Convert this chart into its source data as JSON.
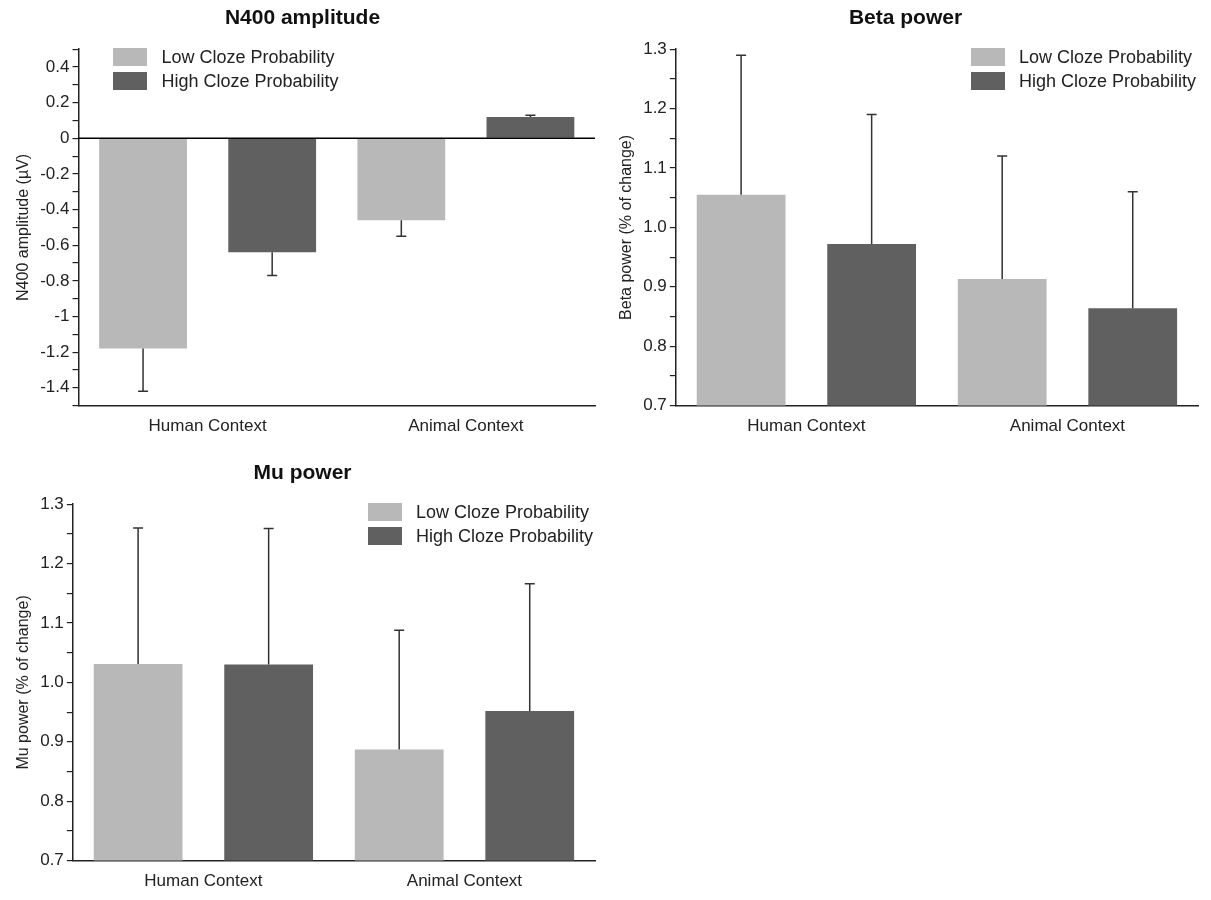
{
  "chart_data": [
    {
      "type": "bar",
      "title": "N400 amplitude",
      "ylabel": "N400 amplitude (µV)",
      "categories": [
        "Human Context",
        "Animal Context"
      ],
      "legend": "top left",
      "series": [
        {
          "name": "Low Cloze Probability",
          "color": "#b8b8b8",
          "values": [
            -1.18,
            -0.46
          ],
          "errors": [
            [
              -1.42,
              -1.18
            ],
            [
              -0.55,
              -0.46
            ]
          ]
        },
        {
          "name": "High Cloze Probability",
          "color": "#606060",
          "values": [
            -0.64,
            0.12
          ],
          "errors": [
            [
              -0.77,
              -0.64
            ],
            [
              0.12,
              0.13
            ]
          ]
        }
      ],
      "ylim": [
        -1.5,
        0.5
      ],
      "yticks": [
        {
          "value": -1.5,
          "label": null
        },
        -1.4,
        {
          "value": -1.3,
          "label": null
        },
        -1.2,
        {
          "value": -1.1,
          "label": null
        },
        -1,
        {
          "value": -0.9,
          "label": null
        },
        -0.8,
        {
          "value": -0.7,
          "label": null
        },
        -0.6,
        {
          "value": -0.5,
          "label": null
        },
        -0.4,
        {
          "value": -0.3,
          "label": null
        },
        -0.2,
        {
          "value": -0.1,
          "label": null
        },
        0,
        {
          "value": 0.1,
          "label": null
        },
        0.2,
        {
          "value": 0.3,
          "label": null
        },
        0.4,
        {
          "value": 0.5,
          "label": null
        }
      ],
      "ref_lines": [
        {
          "axis": "y",
          "value": 0,
          "color": "#000000"
        }
      ]
    },
    {
      "type": "bar",
      "title": "Beta power",
      "ylabel": "Beta power (% of change)",
      "categories": [
        "Human Context",
        "Animal Context"
      ],
      "legend": "top right",
      "series": [
        {
          "name": "Low Cloze Probability",
          "color": "#b8b8b8",
          "values": [
            1.055,
            0.913
          ],
          "errors": [
            [
              1.055,
              1.29
            ],
            [
              0.913,
              1.12
            ]
          ]
        },
        {
          "name": "High Cloze Probability",
          "color": "#606060",
          "values": [
            0.972,
            0.864
          ],
          "errors": [
            [
              0.972,
              1.19
            ],
            [
              0.864,
              1.06
            ]
          ]
        }
      ],
      "ylim": [
        0.7,
        1.3
      ],
      "yticks": [
        0.7,
        {
          "value": 0.75,
          "label": null
        },
        0.8,
        {
          "value": 0.85,
          "label": null
        },
        0.9,
        {
          "value": 0.95,
          "label": null
        },
        {
          "value": 1,
          "label": "1.0"
        },
        {
          "value": 1.05,
          "label": null
        },
        1.1,
        {
          "value": 1.15,
          "label": null
        },
        1.2,
        {
          "value": 1.25,
          "label": null
        },
        1.3
      ]
    },
    {
      "type": "bar",
      "title": "Mu power",
      "ylabel": "Mu power (% of change)",
      "categories": [
        "Human Context",
        "Animal Context"
      ],
      "legend": "top right",
      "series": [
        {
          "name": "Low Cloze Probability",
          "color": "#b8b8b8",
          "values": [
            1.031,
            0.887
          ],
          "errors": [
            [
              1.031,
              1.26
            ],
            [
              0.887,
              1.088
            ]
          ]
        },
        {
          "name": "High Cloze Probability",
          "color": "#606060",
          "values": [
            1.03,
            0.952
          ],
          "errors": [
            [
              1.03,
              1.259
            ],
            [
              0.952,
              1.166
            ]
          ]
        }
      ],
      "ylim": [
        0.7,
        1.3
      ],
      "yticks": [
        0.7,
        {
          "value": 0.75,
          "label": null
        },
        0.8,
        {
          "value": 0.85,
          "label": null
        },
        0.9,
        {
          "value": 0.95,
          "label": null
        },
        {
          "value": 1,
          "label": "1.0"
        },
        {
          "value": 1.05,
          "label": null
        },
        1.1,
        {
          "value": 1.15,
          "label": null
        },
        1.2,
        {
          "value": 1.25,
          "label": null
        },
        1.3
      ]
    }
  ]
}
